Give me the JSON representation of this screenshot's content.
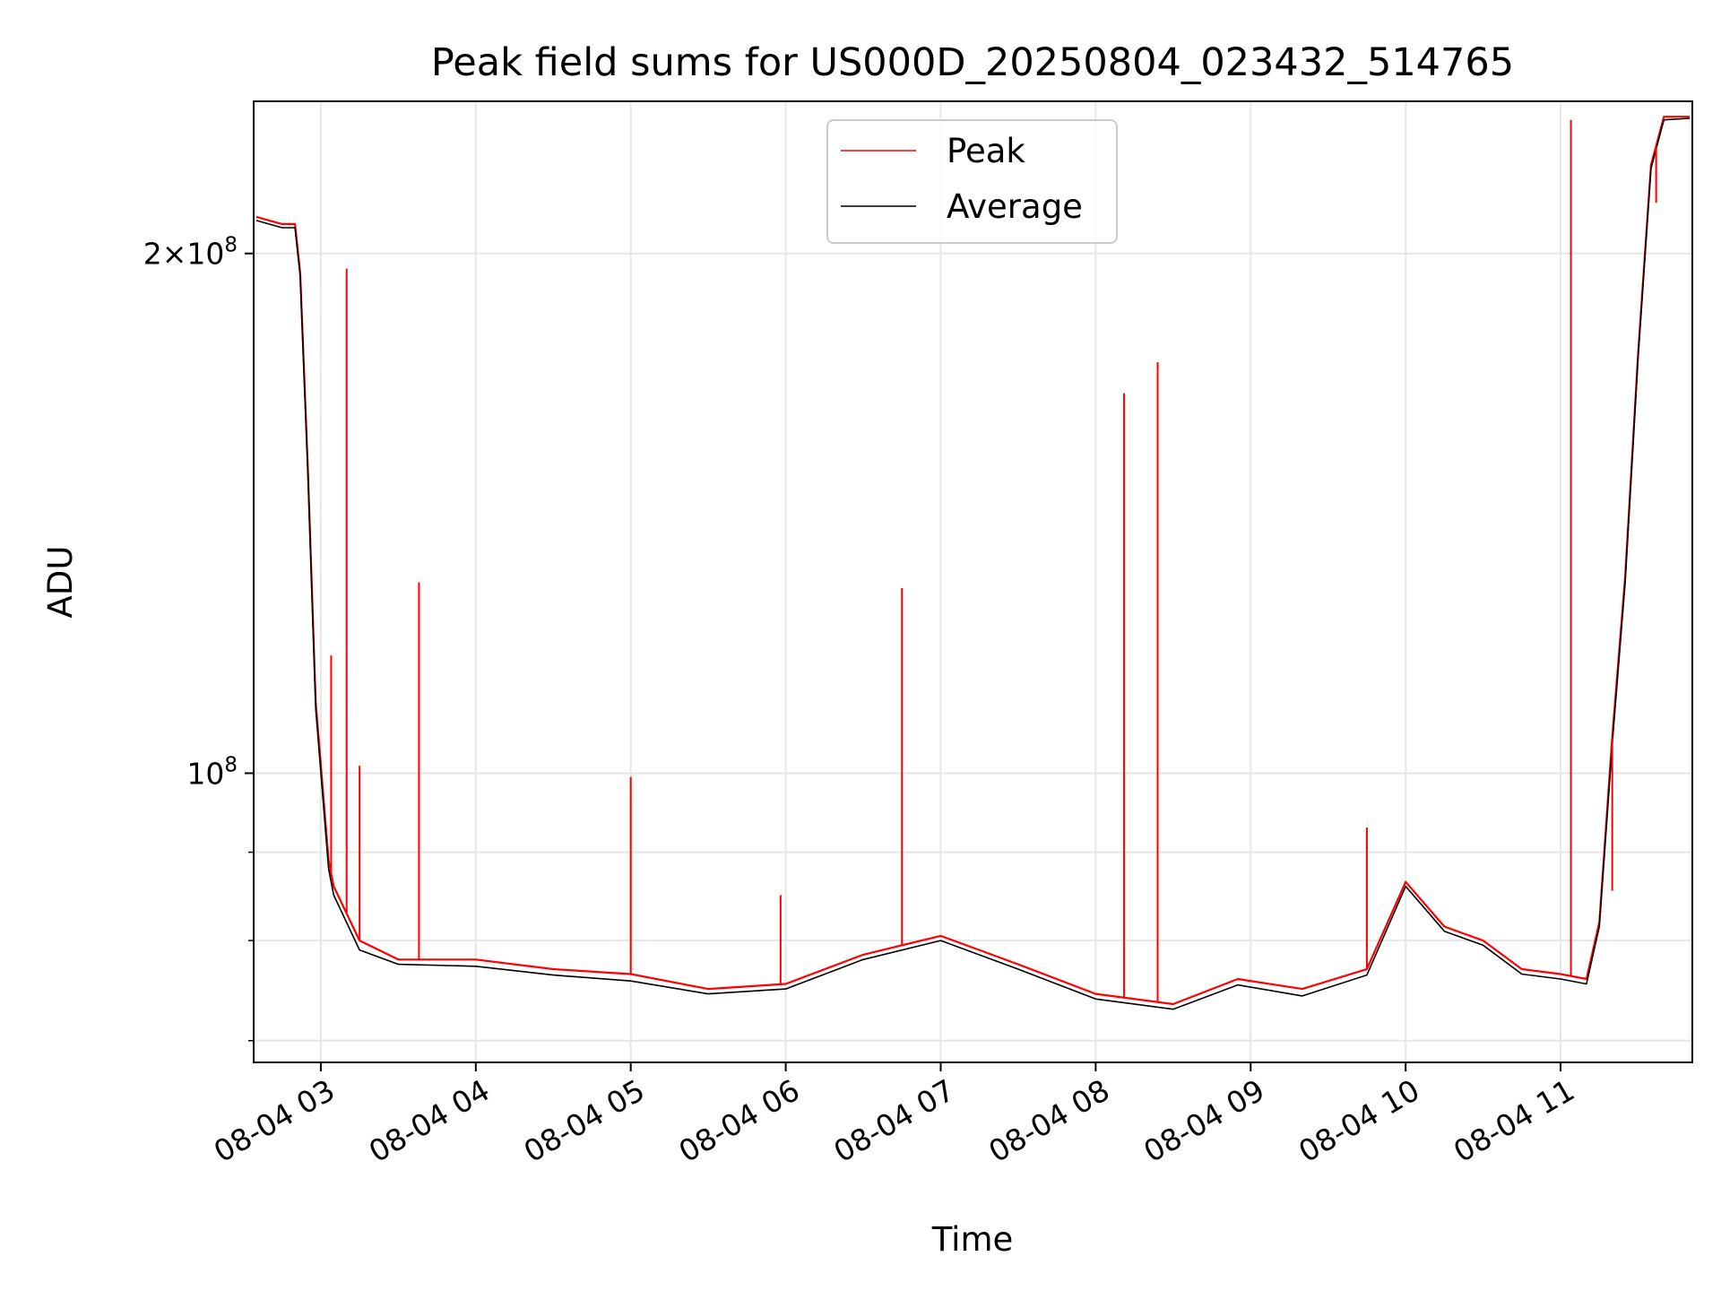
{
  "chart_data": {
    "type": "line",
    "title": "Peak field sums for US000D_20250804_023432_514765",
    "xlabel": "Time",
    "ylabel": "ADU",
    "x_scale": "time",
    "y_scale": "log",
    "xlim": [
      "2025-08-04 02:34",
      "2025-08-04 11:51"
    ],
    "ylim": [
      68000000,
      245000000
    ],
    "grid": true,
    "legend_position": "upper center",
    "x_ticks": [
      "08-04 03",
      "08-04 04",
      "08-04 05",
      "08-04 06",
      "08-04 07",
      "08-04 08",
      "08-04 09",
      "08-04 10",
      "08-04 11"
    ],
    "y_ticks": [
      {
        "value": 100000000,
        "label": "10^8"
      },
      {
        "value": 200000000,
        "label": "2×10^8"
      }
    ],
    "colors": {
      "peak": "#ff0000",
      "average": "#000000",
      "grid": "#e6e6e6"
    },
    "series": [
      {
        "name": "Peak",
        "color": "#ff0000",
        "points": [
          [
            "2025-08-04 02:35",
            210000000
          ],
          [
            "2025-08-04 02:45",
            208000000
          ],
          [
            "2025-08-04 02:50",
            208000000
          ],
          [
            "2025-08-04 02:52",
            195000000
          ],
          [
            "2025-08-04 02:55",
            150000000
          ],
          [
            "2025-08-04 02:58",
            110000000
          ],
          [
            "2025-08-04 03:03",
            89000000
          ],
          [
            "2025-08-04 03:05",
            86000000
          ],
          [
            "2025-08-04 03:15",
            80000000
          ],
          [
            "2025-08-04 03:30",
            78000000
          ],
          [
            "2025-08-04 04:00",
            78000000
          ],
          [
            "2025-08-04 04:30",
            77000000
          ],
          [
            "2025-08-04 05:00",
            76500000
          ],
          [
            "2025-08-04 05:30",
            75000000
          ],
          [
            "2025-08-04 06:00",
            75500000
          ],
          [
            "2025-08-04 06:30",
            78500000
          ],
          [
            "2025-08-04 07:00",
            80500000
          ],
          [
            "2025-08-04 07:30",
            77500000
          ],
          [
            "2025-08-04 08:00",
            74500000
          ],
          [
            "2025-08-04 08:30",
            73500000
          ],
          [
            "2025-08-04 08:55",
            76000000
          ],
          [
            "2025-08-04 09:20",
            75000000
          ],
          [
            "2025-08-04 09:45",
            77000000
          ],
          [
            "2025-08-04 10:00",
            86500000
          ],
          [
            "2025-08-04 10:15",
            81500000
          ],
          [
            "2025-08-04 10:30",
            80000000
          ],
          [
            "2025-08-04 10:45",
            77000000
          ],
          [
            "2025-08-04 11:00",
            76500000
          ],
          [
            "2025-08-04 11:10",
            76000000
          ],
          [
            "2025-08-04 11:15",
            82000000
          ],
          [
            "2025-08-04 11:20",
            105000000
          ],
          [
            "2025-08-04 11:25",
            130000000
          ],
          [
            "2025-08-04 11:30",
            175000000
          ],
          [
            "2025-08-04 11:35",
            225000000
          ],
          [
            "2025-08-04 11:40",
            240000000
          ],
          [
            "2025-08-04 11:50",
            240000000
          ]
        ],
        "spikes": [
          [
            "2025-08-04 03:04",
            117000000
          ],
          [
            "2025-08-04 03:10",
            196000000
          ],
          [
            "2025-08-04 03:15",
            101000000
          ],
          [
            "2025-08-04 03:38",
            129000000
          ],
          [
            "2025-08-04 05:00",
            99500000
          ],
          [
            "2025-08-04 05:58",
            85000000
          ],
          [
            "2025-08-04 06:45",
            128000000
          ],
          [
            "2025-08-04 08:11",
            166000000
          ],
          [
            "2025-08-04 08:24",
            173000000
          ],
          [
            "2025-08-04 09:45",
            93000000
          ],
          [
            "2025-08-04 11:04",
            239000000
          ],
          [
            "2025-08-04 11:20",
            85500000
          ],
          [
            "2025-08-04 11:37",
            214000000
          ]
        ]
      },
      {
        "name": "Average",
        "color": "#000000",
        "points": [
          [
            "2025-08-04 02:35",
            209000000
          ],
          [
            "2025-08-04 02:45",
            207000000
          ],
          [
            "2025-08-04 02:50",
            207000000
          ],
          [
            "2025-08-04 02:52",
            194000000
          ],
          [
            "2025-08-04 02:55",
            149000000
          ],
          [
            "2025-08-04 02:58",
            109000000
          ],
          [
            "2025-08-04 03:03",
            88000000
          ],
          [
            "2025-08-04 03:05",
            85000000
          ],
          [
            "2025-08-04 03:15",
            79000000
          ],
          [
            "2025-08-04 03:30",
            77500000
          ],
          [
            "2025-08-04 04:00",
            77300000
          ],
          [
            "2025-08-04 04:30",
            76400000
          ],
          [
            "2025-08-04 05:00",
            75800000
          ],
          [
            "2025-08-04 05:30",
            74500000
          ],
          [
            "2025-08-04 06:00",
            75000000
          ],
          [
            "2025-08-04 06:30",
            78000000
          ],
          [
            "2025-08-04 07:00",
            80000000
          ],
          [
            "2025-08-04 07:30",
            77000000
          ],
          [
            "2025-08-04 08:00",
            74000000
          ],
          [
            "2025-08-04 08:30",
            73000000
          ],
          [
            "2025-08-04 08:55",
            75400000
          ],
          [
            "2025-08-04 09:20",
            74300000
          ],
          [
            "2025-08-04 09:45",
            76400000
          ],
          [
            "2025-08-04 10:00",
            86000000
          ],
          [
            "2025-08-04 10:15",
            81000000
          ],
          [
            "2025-08-04 10:30",
            79500000
          ],
          [
            "2025-08-04 10:45",
            76500000
          ],
          [
            "2025-08-04 11:00",
            76000000
          ],
          [
            "2025-08-04 11:10",
            75500000
          ],
          [
            "2025-08-04 11:15",
            81500000
          ],
          [
            "2025-08-04 11:20",
            104000000
          ],
          [
            "2025-08-04 11:25",
            129000000
          ],
          [
            "2025-08-04 11:30",
            174000000
          ],
          [
            "2025-08-04 11:35",
            224000000
          ],
          [
            "2025-08-04 11:40",
            239000000
          ],
          [
            "2025-08-04 11:50",
            239500000
          ]
        ]
      }
    ]
  }
}
